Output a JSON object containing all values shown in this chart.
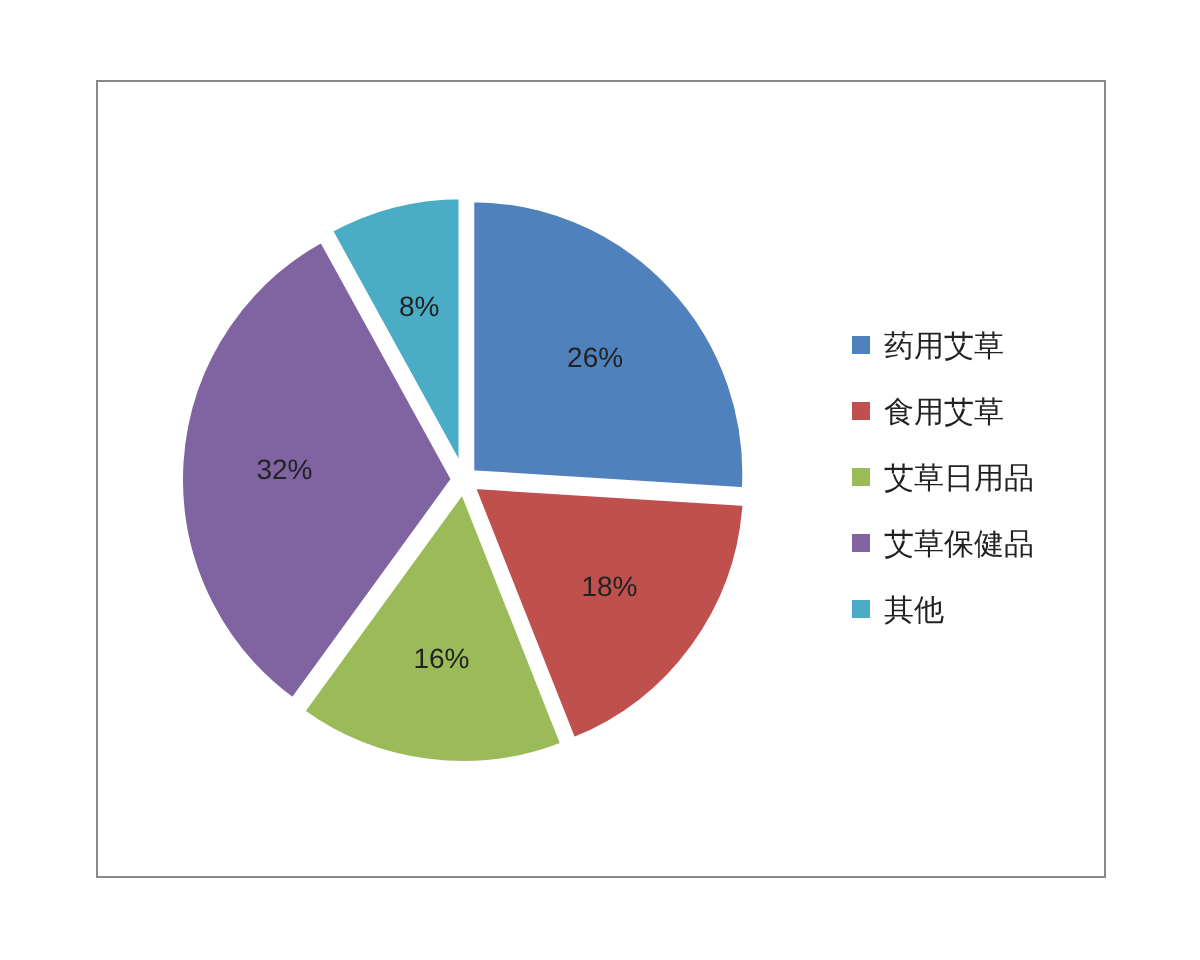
{
  "chart_data": {
    "type": "pie",
    "categories": [
      "药用艾草",
      "食用艾草",
      "艾草日用品",
      "艾草保健品",
      "其他"
    ],
    "values": [
      26,
      18,
      16,
      32,
      8
    ],
    "value_labels": [
      "26%",
      "18%",
      "16%",
      "32%",
      "8%"
    ],
    "colors": [
      "#4f81bd",
      "#c0504d",
      "#9bbb59",
      "#8064a2",
      "#4bacc6"
    ],
    "legend": "right"
  }
}
